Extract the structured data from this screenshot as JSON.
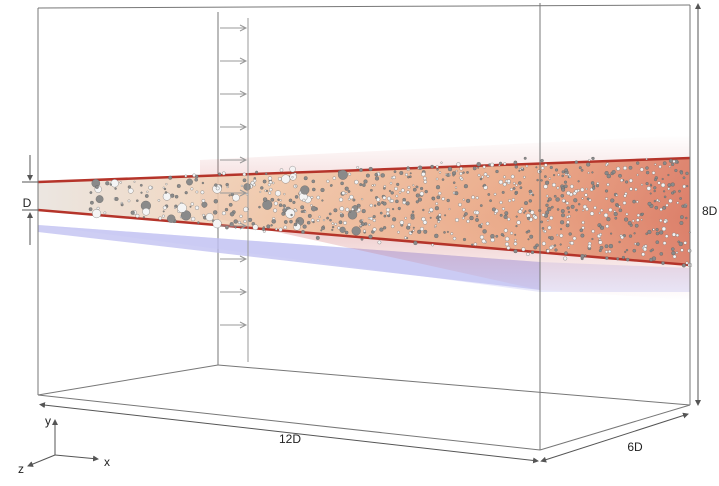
{
  "dimensions": {
    "jet_width": "D",
    "height": "8D",
    "length": "12D",
    "depth": "6D"
  },
  "axes": {
    "y": "y",
    "x": "x",
    "z": "z"
  }
}
